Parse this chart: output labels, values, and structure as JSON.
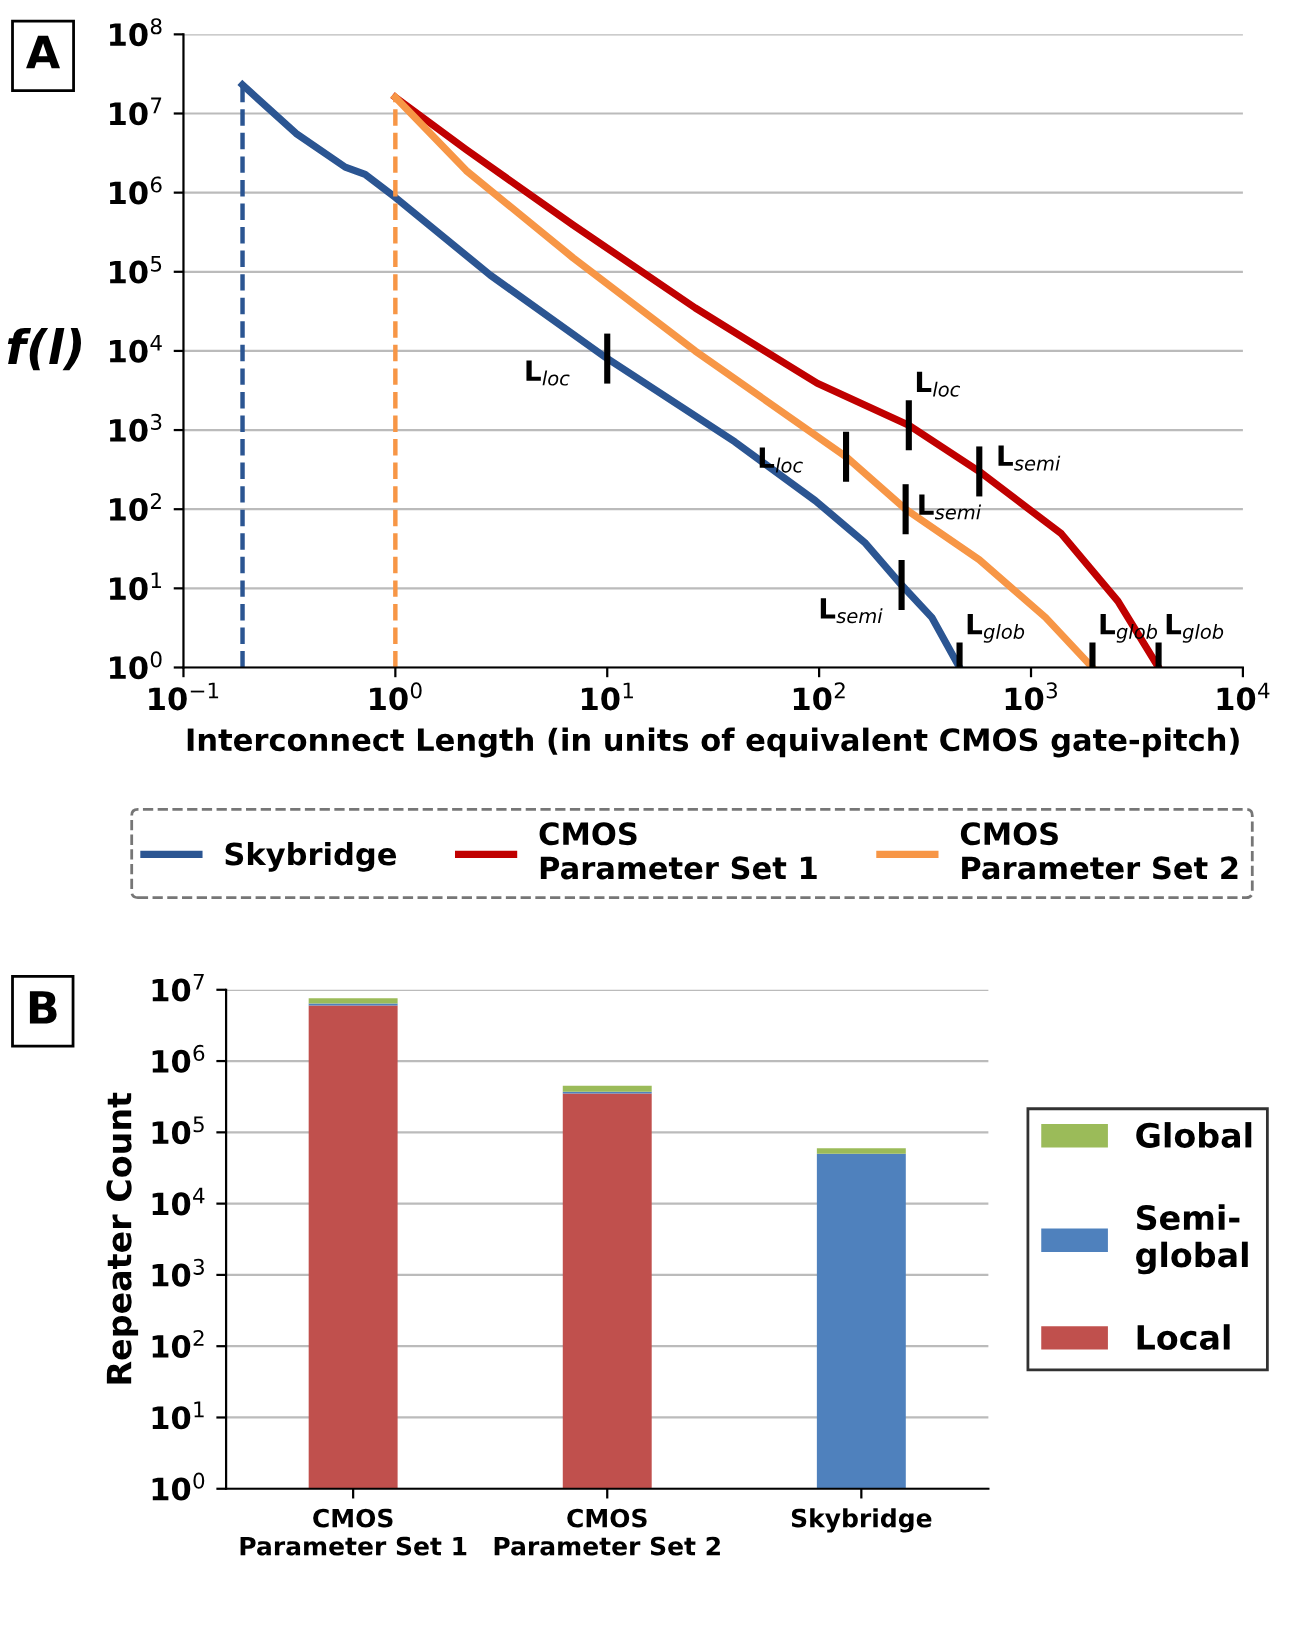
{
  "chart_data": [
    {
      "type": "line",
      "xlabel": "Interconnect Length (in units of equivalent CMOS gate-pitch)",
      "ylabel": "f(l)",
      "log": "xy",
      "grid": "y",
      "legend": "bottom",
      "line_style": "solid",
      "marker": "none",
      "xlim": [
        0.1,
        10000
      ],
      "ylim": [
        1,
        100000000
      ],
      "xticks": [
        {
          "value": 0.1,
          "label": "10$^{−1}$"
        },
        {
          "value": 1,
          "label": "10$^{0}$"
        },
        {
          "value": 10,
          "label": "10$^{1}$"
        },
        {
          "value": 100,
          "label": "10$^{2}$"
        },
        {
          "value": 1000,
          "label": "10$^{3}$"
        },
        {
          "value": 10000,
          "label": "10$^{4}$"
        }
      ],
      "yticks": [
        {
          "value": 1,
          "label": "10$^{0}$"
        },
        {
          "value": 10,
          "label": "10$^{1}$"
        },
        {
          "value": 100,
          "label": "10$^{2}$"
        },
        {
          "value": 1000,
          "label": "10$^{3}$"
        },
        {
          "value": 10000,
          "label": "10$^{4}$"
        },
        {
          "value": 100000,
          "label": "10$^{5}$"
        },
        {
          "value": 1000000,
          "label": "10$^{6}$"
        },
        {
          "value": 10000000,
          "label": "10$^{7}$"
        },
        {
          "value": 100000000,
          "label": "10$^{8}$"
        }
      ],
      "series": [
        {
          "name": "Skybridge",
          "color": "#2b5592",
          "x": [
            0.19,
            0.34,
            0.58,
            0.72,
            1.0,
            2.8,
            10,
            40,
            96,
            164,
            245,
            340,
            460
          ],
          "values": [
            23000000,
            5600000,
            2100000,
            1700000,
            870000,
            91000,
            8000,
            710,
            128,
            38,
            11,
            4.3,
            1
          ]
        },
        {
          "name": "CMOS\nParameter Set 1",
          "color": "#c00000",
          "x": [
            1,
            2.16,
            6.9,
            26,
            98,
            265,
            570,
            1390,
            2570,
            4000
          ],
          "values": [
            16000000,
            3500000,
            390000,
            35000,
            3900,
            1150,
            300,
            49,
            6.9,
            1
          ]
        },
        {
          "name": "CMOS\nParameter Set 2",
          "color": "#f79646",
          "x": [
            1,
            2.16,
            6.9,
            26,
            134,
            256,
            570,
            1170,
            1950
          ],
          "values": [
            16000000,
            1900000,
            150000,
            10000,
            460,
            100,
            23,
            4.3,
            1
          ]
        },
        {
          "color": "#2b5592",
          "line_style": "dashed",
          "x": [
            0.19,
            0.19
          ],
          "values": [
            1,
            23000000
          ]
        },
        {
          "color": "#f79646",
          "line_style": "dashed",
          "x": [
            1,
            1
          ],
          "values": [
            1,
            16000000
          ]
        }
      ],
      "annotations": [
        "A",
        {
          "text": "L$_{loc}$",
          "x": 10,
          "y": 8000
        },
        {
          "text": "L$_{semi}$",
          "x": 245,
          "y": 11
        },
        {
          "text": "L$_{glob}$",
          "x": 460,
          "y": 1
        },
        {
          "text": "L$_{loc}$",
          "x": 265,
          "y": 1150
        },
        {
          "text": "L$_{semi}$",
          "x": 570,
          "y": 300
        },
        {
          "text": "L$_{glob}$",
          "x": 4000,
          "y": 1
        },
        {
          "text": "L$_{loc}$",
          "x": 134,
          "y": 460
        },
        {
          "text": "L$_{semi}$",
          "x": 256,
          "y": 100
        },
        {
          "text": "L$_{glob}$",
          "x": 1950,
          "y": 1
        }
      ]
    },
    {
      "type": "bar",
      "stacked": true,
      "ylabel": "Repeater Count",
      "log": "y",
      "grid": "y",
      "legend": "right",
      "categories": [
        "CMOS\nParameter Set 1",
        "CMOS\nParameter Set 2",
        "Skybridge"
      ],
      "ylim": [
        1,
        10000000
      ],
      "yticks": [
        {
          "value": 1,
          "label": "10$^{0}$"
        },
        {
          "value": 10,
          "label": "10$^{1}$"
        },
        {
          "value": 100,
          "label": "10$^{2}$"
        },
        {
          "value": 1000,
          "label": "10$^{3}$"
        },
        {
          "value": 10000,
          "label": "10$^{4}$"
        },
        {
          "value": 100000,
          "label": "10$^{5}$"
        },
        {
          "value": 1000000,
          "label": "10$^{6}$"
        },
        {
          "value": 10000000,
          "label": "10$^{7}$"
        }
      ],
      "series": [
        {
          "name": "Local",
          "color": "#c0504d",
          "values": [
            6000000,
            350000,
            null
          ]
        },
        {
          "name": "Semi-\nglobal",
          "color": "#4f81bd",
          "values": [
            400000,
            20000,
            50000
          ]
        },
        {
          "name": "Global",
          "color": "#9bbb59",
          "values": [
            1200000,
            80000,
            10000
          ]
        }
      ],
      "annotations": [
        "B"
      ]
    }
  ]
}
